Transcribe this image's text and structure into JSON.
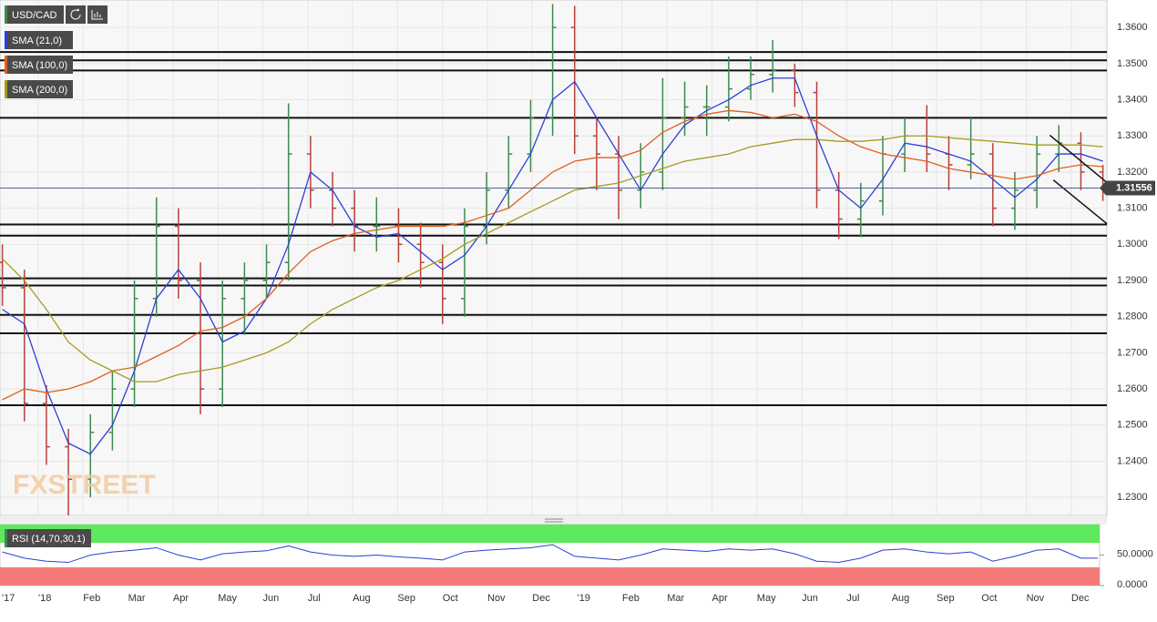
{
  "header": {
    "symbol": "USD/CAD"
  },
  "watermark": "FXSTREET",
  "chart_data": {
    "type": "ohlc",
    "grid": true,
    "up_color": "#3d8a4f",
    "down_color": "#b8403a",
    "ylim": [
      1.225,
      1.3676
    ],
    "yticks": [
      {
        "value": 1.23,
        "label": "1.2300"
      },
      {
        "value": 1.24,
        "label": "1.2400"
      },
      {
        "value": 1.25,
        "label": "1.2500"
      },
      {
        "value": 1.26,
        "label": "1.2600"
      },
      {
        "value": 1.27,
        "label": "1.2700"
      },
      {
        "value": 1.28,
        "label": "1.2800"
      },
      {
        "value": 1.29,
        "label": "1.2900"
      },
      {
        "value": 1.3,
        "label": "1.3000"
      },
      {
        "value": 1.31,
        "label": "1.3100"
      },
      {
        "value": 1.32,
        "label": "1.3200"
      },
      {
        "value": 1.33,
        "label": "1.3300"
      },
      {
        "value": 1.34,
        "label": "1.3400"
      },
      {
        "value": 1.35,
        "label": "1.3500"
      },
      {
        "value": 1.36,
        "label": "1.3600"
      }
    ],
    "categories": [
      "'17",
      "'18",
      "Feb",
      "Mar",
      "Apr",
      "May",
      "Jun",
      "Jul",
      "Aug",
      "Sep",
      "Oct",
      "Nov",
      "Dec",
      "'19",
      "Feb",
      "Mar",
      "Apr",
      "May",
      "Jun",
      "Jul",
      "Aug",
      "Sep",
      "Oct",
      "Nov",
      "Dec"
    ],
    "open": [
      1.295,
      1.288,
      1.256,
      1.244,
      1.235,
      1.248,
      1.26,
      1.285,
      1.305,
      1.29,
      1.26,
      1.285,
      1.29,
      1.295,
      1.325,
      1.315,
      1.31,
      1.305,
      1.305,
      1.3,
      1.295,
      1.285,
      1.305,
      1.315,
      1.325,
      1.335,
      1.36,
      1.33,
      1.325,
      1.315,
      1.32,
      1.335,
      1.338,
      1.338,
      1.343,
      1.347,
      1.348,
      1.342,
      1.315,
      1.307,
      1.312,
      1.325,
      1.33,
      1.325,
      1.322,
      1.325,
      1.31,
      1.315,
      1.325,
      1.328,
      1.32
    ],
    "high": [
      1.3,
      1.293,
      1.261,
      1.249,
      1.253,
      1.265,
      1.29,
      1.313,
      1.31,
      1.295,
      1.29,
      1.295,
      1.3,
      1.339,
      1.33,
      1.32,
      1.315,
      1.313,
      1.31,
      1.306,
      1.3,
      1.31,
      1.32,
      1.33,
      1.34,
      1.3665,
      1.366,
      1.335,
      1.33,
      1.328,
      1.346,
      1.345,
      1.344,
      1.352,
      1.352,
      1.3565,
      1.35,
      1.345,
      1.32,
      1.317,
      1.33,
      1.335,
      1.3385,
      1.33,
      1.335,
      1.328,
      1.32,
      1.33,
      1.333,
      1.331,
      1.322
    ],
    "low": [
      1.283,
      1.251,
      1.239,
      1.225,
      1.23,
      1.243,
      1.255,
      1.28,
      1.285,
      1.253,
      1.255,
      1.275,
      1.285,
      1.29,
      1.31,
      1.305,
      1.298,
      1.298,
      1.295,
      1.288,
      1.278,
      1.28,
      1.3,
      1.31,
      1.32,
      1.33,
      1.325,
      1.315,
      1.307,
      1.31,
      1.315,
      1.33,
      1.33,
      1.334,
      1.34,
      1.342,
      1.338,
      1.31,
      1.3015,
      1.302,
      1.308,
      1.32,
      1.32,
      1.315,
      1.318,
      1.305,
      1.304,
      1.31,
      1.32,
      1.315,
      1.312
    ],
    "close": [
      1.288,
      1.256,
      1.244,
      1.235,
      1.248,
      1.26,
      1.285,
      1.305,
      1.29,
      1.26,
      1.285,
      1.29,
      1.295,
      1.325,
      1.315,
      1.31,
      1.305,
      1.305,
      1.3,
      1.295,
      1.285,
      1.305,
      1.315,
      1.325,
      1.335,
      1.36,
      1.33,
      1.325,
      1.315,
      1.32,
      1.335,
      1.338,
      1.338,
      1.343,
      1.347,
      1.348,
      1.342,
      1.315,
      1.307,
      1.312,
      1.325,
      1.33,
      1.325,
      1.322,
      1.325,
      1.31,
      1.315,
      1.325,
      1.328,
      1.32,
      1.3156
    ],
    "indicators": [
      {
        "name": "SMA (21,0)",
        "color": "#2a3fd6",
        "values": [
          1.282,
          1.278,
          1.26,
          1.245,
          1.242,
          1.25,
          1.265,
          1.285,
          1.293,
          1.285,
          1.273,
          1.276,
          1.285,
          1.3,
          1.32,
          1.315,
          1.305,
          1.302,
          1.303,
          1.298,
          1.293,
          1.297,
          1.305,
          1.315,
          1.325,
          1.34,
          1.345,
          1.335,
          1.325,
          1.315,
          1.325,
          1.333,
          1.337,
          1.34,
          1.344,
          1.346,
          1.346,
          1.33,
          1.315,
          1.31,
          1.318,
          1.328,
          1.327,
          1.325,
          1.323,
          1.318,
          1.313,
          1.318,
          1.325,
          1.325,
          1.323
        ]
      },
      {
        "name": "SMA (100,0)",
        "color": "#e0601e",
        "values": [
          1.257,
          1.26,
          1.259,
          1.26,
          1.262,
          1.265,
          1.266,
          1.269,
          1.272,
          1.276,
          1.277,
          1.28,
          1.285,
          1.292,
          1.298,
          1.301,
          1.303,
          1.304,
          1.305,
          1.305,
          1.305,
          1.306,
          1.308,
          1.31,
          1.315,
          1.32,
          1.323,
          1.324,
          1.324,
          1.326,
          1.331,
          1.334,
          1.336,
          1.337,
          1.3365,
          1.335,
          1.336,
          1.334,
          1.33,
          1.327,
          1.325,
          1.324,
          1.323,
          1.321,
          1.32,
          1.319,
          1.318,
          1.319,
          1.321,
          1.322,
          1.3215
        ]
      },
      {
        "name": "SMA (200,0)",
        "color": "#a89a1e",
        "values": [
          1.296,
          1.29,
          1.282,
          1.273,
          1.268,
          1.265,
          1.262,
          1.262,
          1.264,
          1.265,
          1.266,
          1.268,
          1.27,
          1.273,
          1.278,
          1.282,
          1.285,
          1.288,
          1.29,
          1.293,
          1.296,
          1.3,
          1.303,
          1.306,
          1.309,
          1.312,
          1.315,
          1.316,
          1.317,
          1.319,
          1.321,
          1.323,
          1.324,
          1.325,
          1.327,
          1.328,
          1.329,
          1.329,
          1.3285,
          1.3285,
          1.329,
          1.33,
          1.33,
          1.3295,
          1.329,
          1.3285,
          1.328,
          1.3275,
          1.3275,
          1.3275,
          1.327
        ]
      }
    ],
    "levels": [
      1.3532,
      1.3509,
      1.3481,
      1.335,
      1.3055,
      1.3024,
      1.2906,
      1.2886,
      1.2805,
      1.2754,
      1.2555
    ],
    "channel": [
      [
        1.3302,
        1.3171
      ],
      [
        1.3178,
        1.3057
      ]
    ],
    "last_price": {
      "value": 1.31556,
      "label": "1.31556"
    },
    "rsi": {
      "name": "RSI (14,70,30,1)",
      "color": "#2a3fd6",
      "ylim": [
        0,
        100
      ],
      "overbought": 70,
      "oversold": 30,
      "yticks": [
        {
          "value": 0,
          "label": "0.0000"
        },
        {
          "value": 50,
          "label": "50.0000"
        }
      ],
      "values": [
        55,
        45,
        40,
        38,
        50,
        55,
        58,
        62,
        50,
        42,
        52,
        55,
        57,
        65,
        55,
        50,
        48,
        50,
        47,
        45,
        42,
        55,
        58,
        60,
        62,
        67,
        48,
        45,
        42,
        50,
        60,
        58,
        56,
        60,
        58,
        60,
        52,
        40,
        38,
        45,
        58,
        60,
        55,
        52,
        55,
        40,
        48,
        58,
        60,
        45,
        45
      ]
    }
  }
}
